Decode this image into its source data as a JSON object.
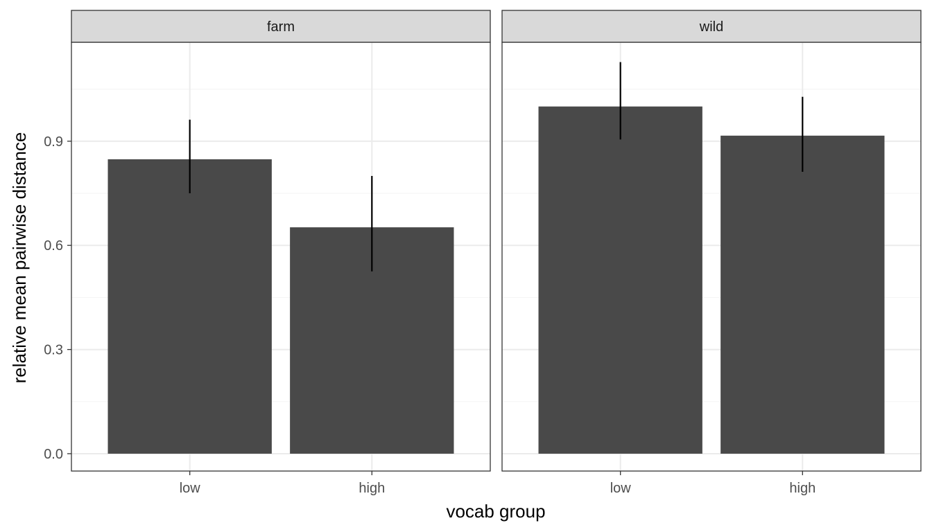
{
  "chart_data": {
    "type": "bar",
    "xlabel": "vocab group",
    "ylabel": "relative mean pairwise distance",
    "categories": [
      "low",
      "high"
    ],
    "yticks": [
      "0.0",
      "0.3",
      "0.6",
      "0.9"
    ],
    "ylim": [
      -0.05,
      1.185
    ],
    "grid": true,
    "facets": [
      {
        "label": "farm",
        "values": [
          0.848,
          0.652
        ],
        "error_low": [
          0.75,
          0.525
        ],
        "error_high": [
          0.962,
          0.8
        ]
      },
      {
        "label": "wild",
        "values": [
          1.0,
          0.916
        ],
        "error_low": [
          0.905,
          0.812
        ],
        "error_high": [
          1.128,
          1.028
        ]
      }
    ],
    "colors": {
      "bar": "#494949",
      "errorbar": "#000000",
      "grid_major": "#ebebeb",
      "grid_minor": "#f5f5f5",
      "strip_bg": "#d9d9d9",
      "border": "#333333"
    }
  }
}
